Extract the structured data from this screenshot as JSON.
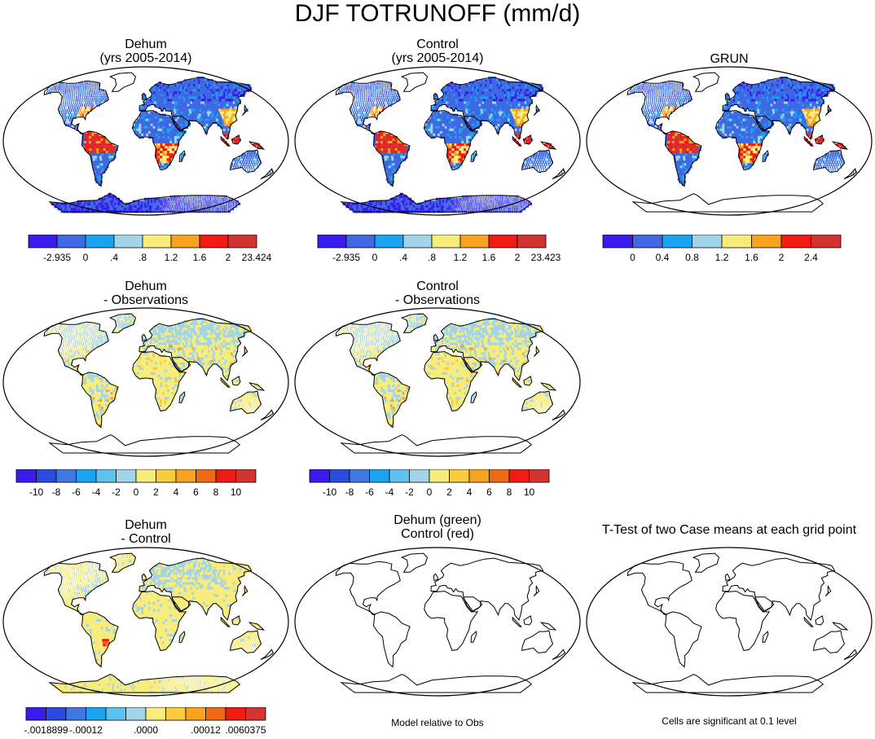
{
  "figure_title": "DJF TOTRUNOFF (mm/d)",
  "panels": [
    {
      "id": "dehum",
      "title_lines": [
        "Dehum",
        "(yrs 2005-2014)"
      ],
      "field": "runoff",
      "antarctica_filled": true,
      "colorbar": {
        "colors": [
          "#3a1cf0",
          "#3f68e2",
          "#1aa4f0",
          "#a2d4ea",
          "#f8ec7c",
          "#f8a31e",
          "#f01c14",
          "#d43332"
        ],
        "labels": [
          "-2.935",
          "0",
          ".4",
          ".8",
          "1.2",
          "1.6",
          "2",
          "23.424"
        ],
        "label_style": "edges"
      }
    },
    {
      "id": "control",
      "title_lines": [
        "Control",
        "(yrs 2005-2014)"
      ],
      "field": "runoff",
      "antarctica_filled": true,
      "colorbar": {
        "colors": [
          "#3a1cf0",
          "#3f68e2",
          "#1aa4f0",
          "#a2d4ea",
          "#f8ec7c",
          "#f8a31e",
          "#f01c14",
          "#d43332"
        ],
        "labels": [
          "-2.935",
          "0",
          ".4",
          ".8",
          "1.2",
          "1.6",
          "2",
          "23.423"
        ],
        "label_style": "edges"
      }
    },
    {
      "id": "grun",
      "title_lines": [
        "GRUN"
      ],
      "field": "runoff",
      "antarctica_filled": false,
      "colorbar": {
        "colors": [
          "#3a1cf0",
          "#3f68e2",
          "#1aa4f0",
          "#a2d4ea",
          "#f8ec7c",
          "#f8a31e",
          "#f01c14",
          "#d43332"
        ],
        "labels": [
          "0",
          "0.4",
          "0.8",
          "1.2",
          "1.6",
          "2",
          "2.4"
        ],
        "label_style": "interior"
      }
    },
    {
      "id": "dehum-obs",
      "title_lines": [
        "Dehum",
        "- Observations"
      ],
      "field": "diff_obs",
      "antarctica_filled": false,
      "colorbar": {
        "colors": [
          "#3a1cf0",
          "#2b4ae0",
          "#3f78e2",
          "#1aa4f0",
          "#5cc2ee",
          "#a2d4ea",
          "#f8ec7c",
          "#f8cc3c",
          "#f8a31e",
          "#f06a14",
          "#f01c14",
          "#d43332"
        ],
        "labels": [
          "-10",
          "-8",
          "-6",
          "-4",
          "-2",
          "0",
          "2",
          "4",
          "6",
          "8",
          "10"
        ],
        "label_style": "interior"
      }
    },
    {
      "id": "control-obs",
      "title_lines": [
        "Control",
        "- Observations"
      ],
      "field": "diff_obs",
      "antarctica_filled": false,
      "colorbar": {
        "colors": [
          "#3a1cf0",
          "#2b4ae0",
          "#3f78e2",
          "#1aa4f0",
          "#5cc2ee",
          "#a2d4ea",
          "#f8ec7c",
          "#f8cc3c",
          "#f8a31e",
          "#f06a14",
          "#f01c14",
          "#d43332"
        ],
        "labels": [
          "-10",
          "-8",
          "-6",
          "-4",
          "-2",
          "0",
          "2",
          "4",
          "6",
          "8",
          "10"
        ],
        "label_style": "interior"
      }
    },
    {
      "id": "dehum-control",
      "title_lines": [
        "Dehum",
        "- Control"
      ],
      "field": "diff_ctrl",
      "antarctica_filled": true,
      "colorbar": {
        "colors": [
          "#3a1cf0",
          "#2b4ae0",
          "#3f78e2",
          "#1aa4f0",
          "#5cc2ee",
          "#a2d4ea",
          "#f8ec7c",
          "#f8cc3c",
          "#f8a31e",
          "#f06a14",
          "#f01c14",
          "#d43332"
        ],
        "labels": [
          "-.0018899",
          "-.00012",
          ".0000",
          ".00012",
          ".0060375"
        ],
        "label_style": "sparse"
      }
    },
    {
      "id": "green-red",
      "title_lines": [
        "Dehum (green)",
        "Control (red)"
      ],
      "field": "none",
      "antarctica_filled": false,
      "note": "Model relative to Obs"
    },
    {
      "id": "ttest",
      "title_lines": [
        "T-Test of two Case means at each grid point"
      ],
      "field": "none",
      "antarctica_filled": false,
      "note": "Cells are significant at 0.1 level"
    }
  ]
}
